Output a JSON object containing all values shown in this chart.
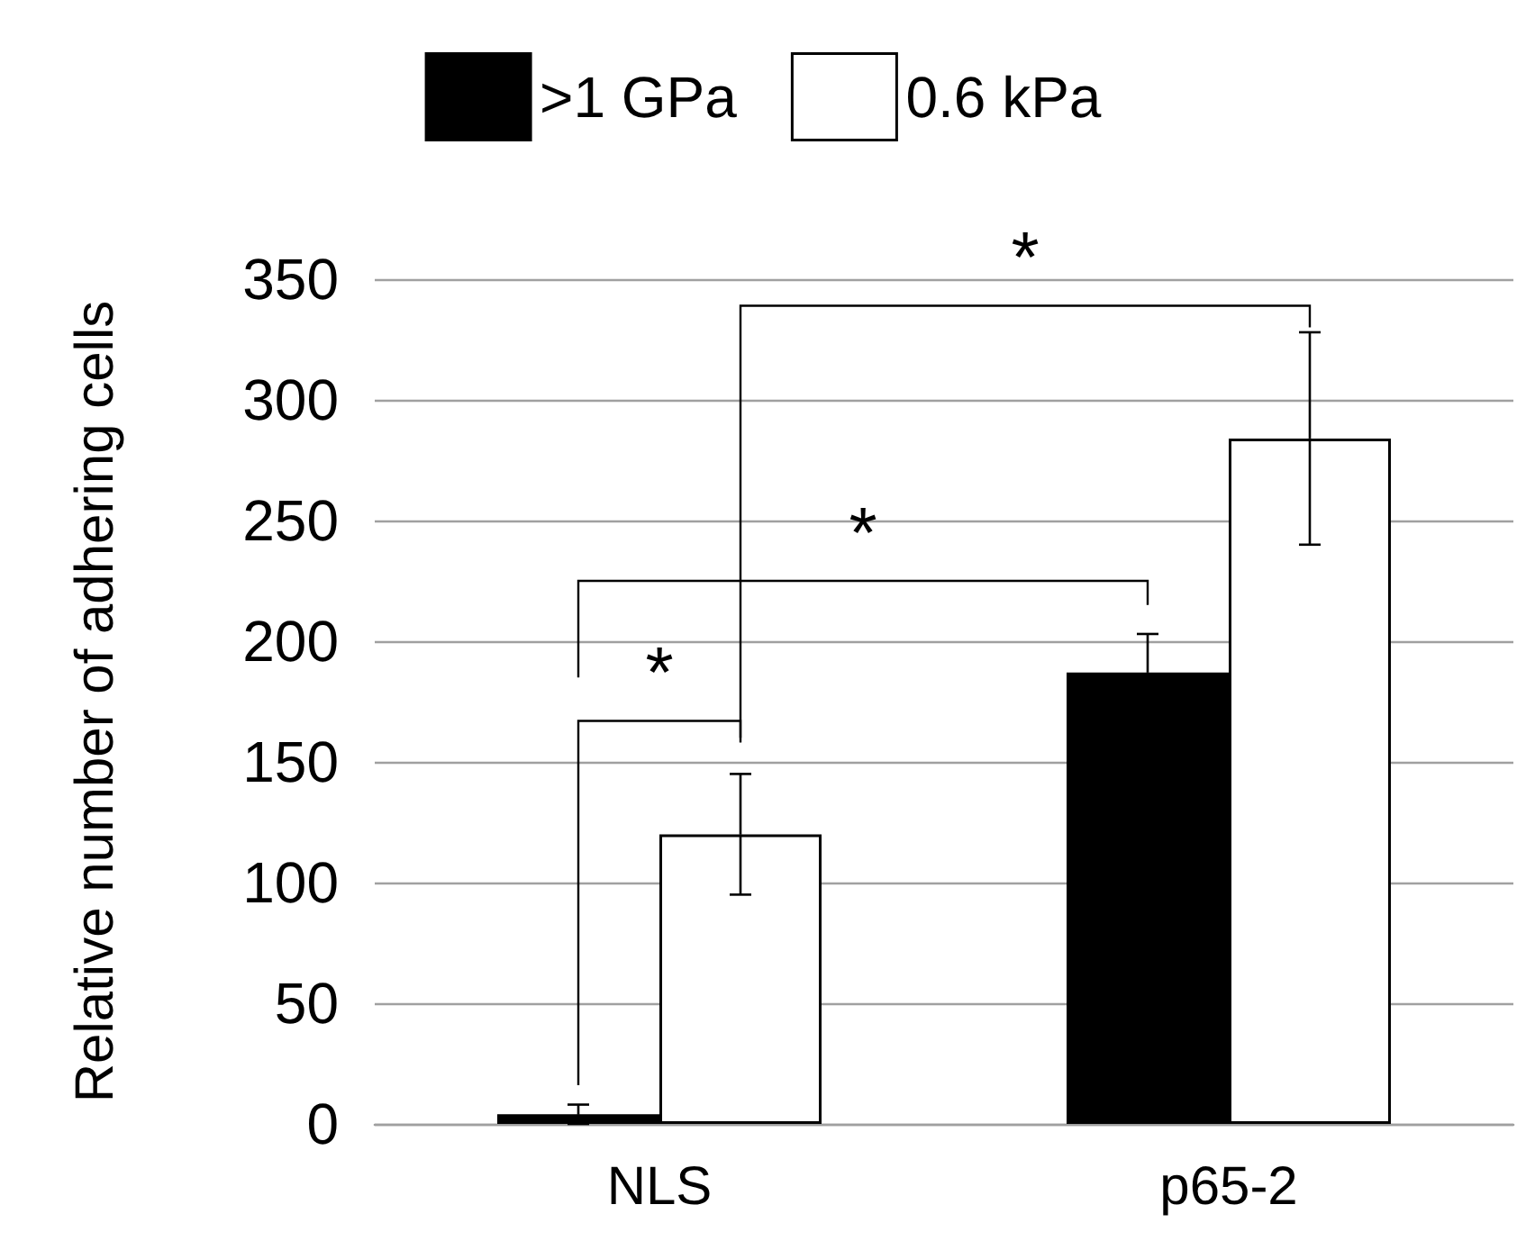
{
  "chart_data": {
    "type": "bar",
    "ylabel": "Relative number of adhering cells",
    "categories": [
      "NLS",
      "p65-2"
    ],
    "series": [
      {
        "name": ">1 GPa",
        "color": "#000000",
        "values": [
          4,
          187
        ],
        "errors": [
          4,
          16
        ]
      },
      {
        "name": "0.6 kPa",
        "color": "#ffffff",
        "values": [
          120,
          284
        ],
        "errors": [
          25,
          44
        ]
      }
    ],
    "ylim": [
      0,
      350
    ],
    "yticks": [
      0,
      50,
      100,
      150,
      200,
      250,
      300,
      350
    ],
    "grid": "y",
    "legend": "top",
    "annotations": [
      "*",
      "*",
      "*"
    ]
  }
}
